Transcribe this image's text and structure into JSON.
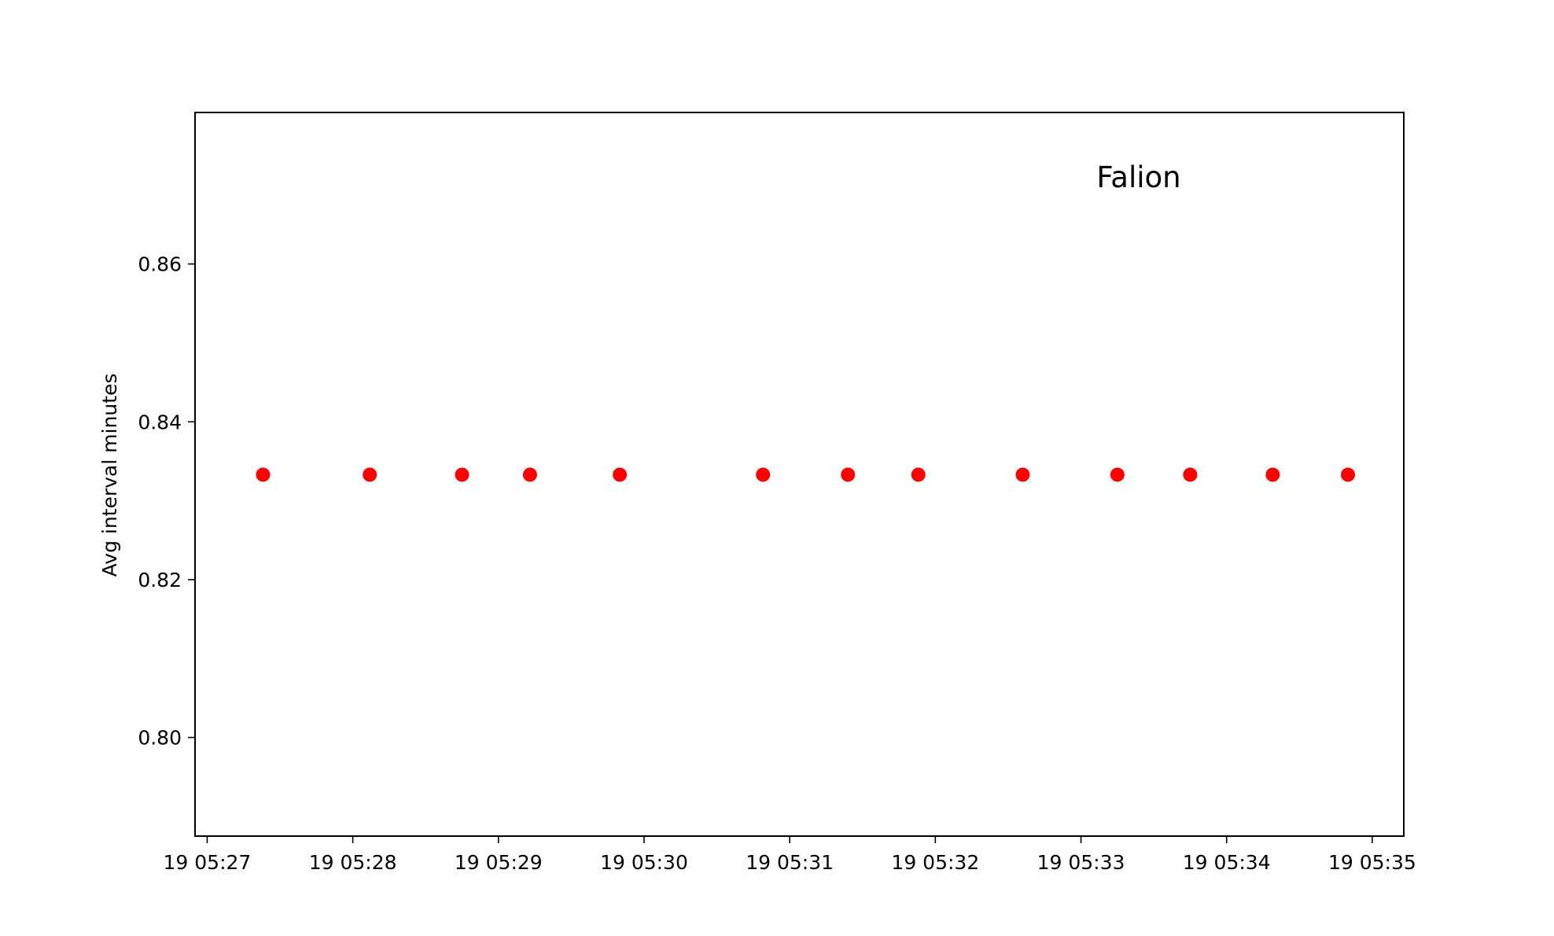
{
  "chart_data": {
    "type": "scatter",
    "title": "",
    "annotation": "Falion",
    "xlabel": "",
    "ylabel": "Avg interval minutes",
    "x_tick_labels": [
      "19 05:27",
      "19 05:28",
      "19 05:29",
      "19 05:30",
      "19 05:31",
      "19 05:32",
      "19 05:33",
      "19 05:34",
      "19 05:35"
    ],
    "x_ticks": [
      "05:27:00",
      "05:28:00",
      "05:29:00",
      "05:30:00",
      "05:31:00",
      "05:32:00",
      "05:33:00",
      "05:34:00",
      "05:35:00"
    ],
    "xlim": [
      "05:26:55",
      "05:35:13"
    ],
    "y_ticks": [
      0.8,
      0.82,
      0.84,
      0.86
    ],
    "ylim": [
      0.7875,
      0.8792
    ],
    "grid": false,
    "series": [
      {
        "color": "#ff0000",
        "marker": "circle",
        "x": [
          "05:27:23",
          "05:28:07",
          "05:28:45",
          "05:29:13",
          "05:29:50",
          "05:30:49",
          "05:31:24",
          "05:31:53",
          "05:32:36",
          "05:33:15",
          "05:33:45",
          "05:34:19",
          "05:34:50"
        ],
        "y": [
          0.8333,
          0.8333,
          0.8333,
          0.8333,
          0.8333,
          0.8333,
          0.8333,
          0.8333,
          0.8333,
          0.8333,
          0.8333,
          0.8333,
          0.8333
        ]
      }
    ]
  }
}
